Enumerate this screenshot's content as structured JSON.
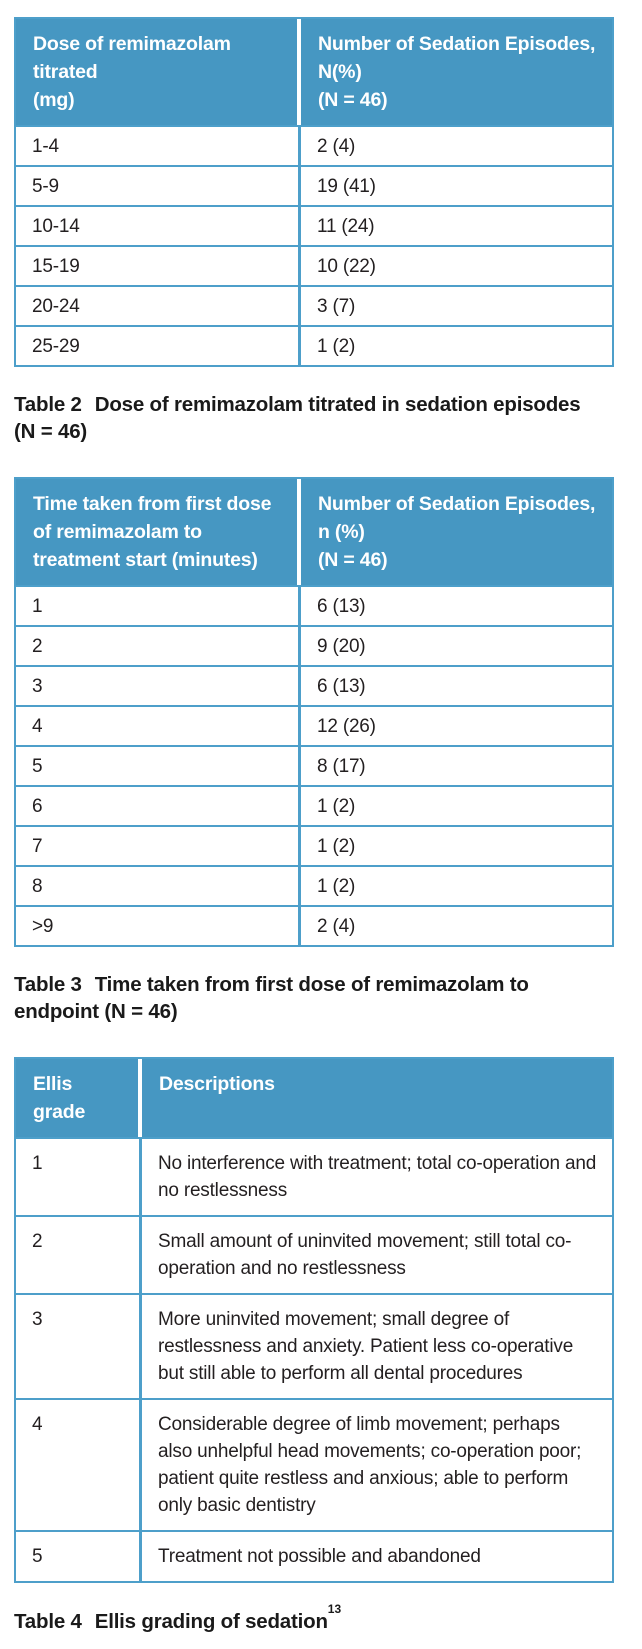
{
  "colors": {
    "header_background": "#4697c2",
    "table_border": "#4d9fca",
    "header_text": "#ffffff",
    "body_text": "#231f20"
  },
  "tables": [
    {
      "id": "table-2",
      "headers": [
        [
          "Dose of remimazolam",
          "titrated",
          "(mg)"
        ],
        [
          "Number of Sedation Episodes,",
          "N(%)",
          "(N = 46)"
        ]
      ],
      "rows": [
        [
          "1-4",
          "2 (4)"
        ],
        [
          "5-9",
          "19 (41)"
        ],
        [
          "10-14",
          "11 (24)"
        ],
        [
          "15-19",
          "10 (22)"
        ],
        [
          "20-24",
          "3 (7)"
        ],
        [
          "25-29",
          "1 (2)"
        ]
      ],
      "caption_label": "Table 2",
      "caption_line1": "Dose of remimazolam titrated in sedation episodes",
      "caption_line2": "(N = 46)"
    },
    {
      "id": "table-3",
      "headers": [
        [
          "Time taken from first dose",
          "of remimazolam to",
          "treatment start (minutes)"
        ],
        [
          "Number of Sedation Episodes,",
          "n (%)",
          "(N = 46)"
        ]
      ],
      "rows": [
        [
          "1",
          "6 (13)"
        ],
        [
          "2",
          "9 (20)"
        ],
        [
          "3",
          "6 (13)"
        ],
        [
          "4",
          "12 (26)"
        ],
        [
          "5",
          "8 (17)"
        ],
        [
          "6",
          "1 (2)"
        ],
        [
          "7",
          "1 (2)"
        ],
        [
          "8",
          "1 (2)"
        ],
        [
          ">9",
          "2 (4)"
        ]
      ],
      "caption_label": "Table 3",
      "caption_line1": "Time taken from first dose of remimazolam to",
      "caption_line2": "endpoint (N = 46)"
    },
    {
      "id": "table-4",
      "headers": [
        [
          "Ellis grade"
        ],
        [
          "Descriptions"
        ]
      ],
      "rows": [
        [
          "1",
          "No interference with treatment; total co-operation and no restlessness"
        ],
        [
          "2",
          "Small amount of uninvited movement; still total co-operation and no restlessness"
        ],
        [
          "3",
          "More uninvited movement; small degree of restlessness and anxiety. Patient less co-operative but still able to perform all dental procedures"
        ],
        [
          "4",
          "Considerable degree of limb movement; perhaps also unhelpful head movements; co-operation poor; patient quite restless and anxious; able to perform only basic dentistry"
        ],
        [
          "5",
          "Treatment not possible and abandoned"
        ]
      ],
      "caption_label": "Table 4",
      "caption_text": "Ellis grading of sedation",
      "caption_sup": "13"
    }
  ]
}
